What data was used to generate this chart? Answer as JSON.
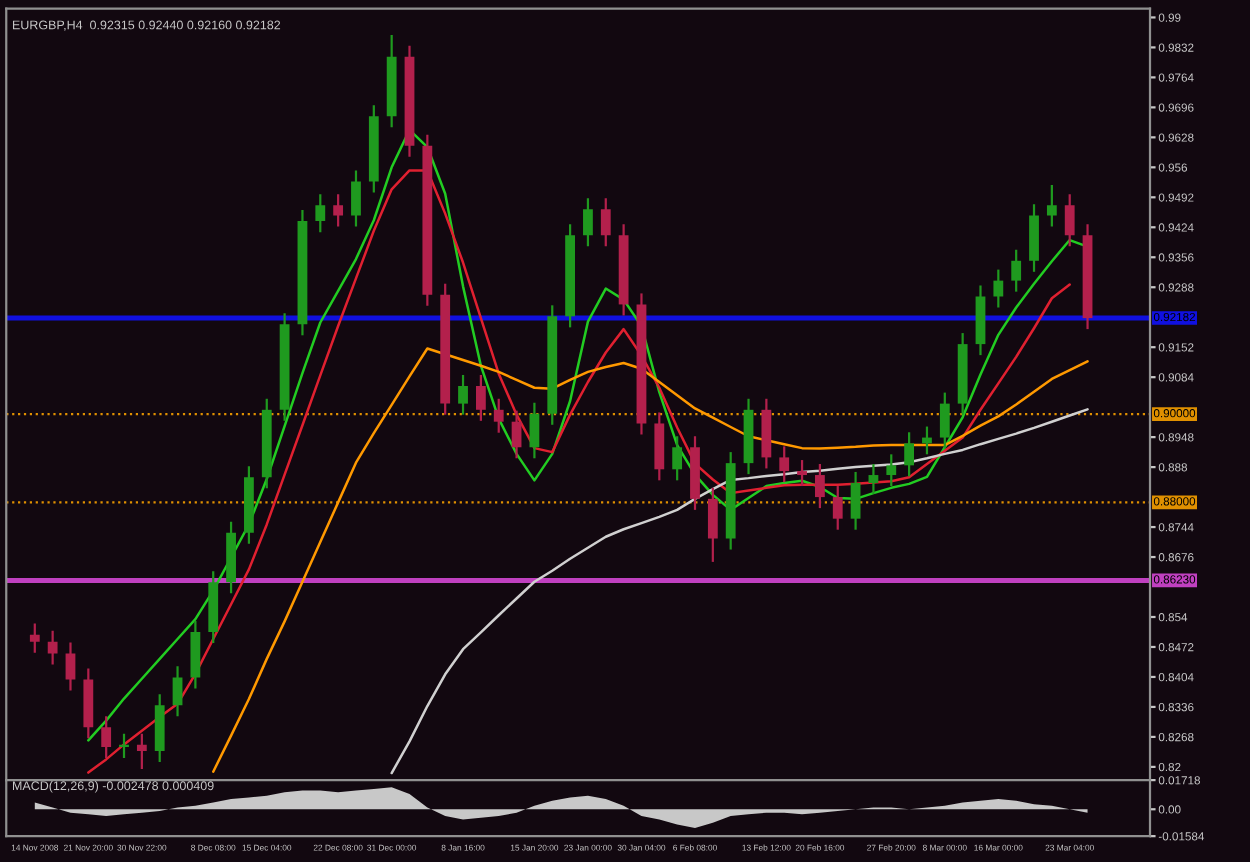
{
  "chart_data": [
    {
      "type": "candlestick",
      "title": "EURGBP,H4  0.92315 0.92440 0.92160 0.92182",
      "categories": [
        null,
        null,
        null,
        null,
        null,
        null,
        null,
        null,
        null,
        null,
        null,
        null,
        null,
        null,
        null,
        null,
        null,
        null,
        null,
        null,
        null,
        null,
        null,
        null,
        null,
        null,
        null,
        null,
        null,
        null,
        null,
        null,
        null,
        null,
        null,
        null,
        null,
        null,
        null,
        null,
        null,
        null,
        null,
        null,
        null,
        null,
        null,
        null,
        null,
        null,
        null,
        null,
        null,
        null,
        null,
        null,
        null,
        null,
        null,
        null
      ],
      "ohlc": [
        [
          0.85,
          0.8525,
          0.8459,
          0.8484
        ],
        [
          0.8484,
          0.8509,
          0.8432,
          0.8457
        ],
        [
          0.8457,
          0.8482,
          0.8373,
          0.8398
        ],
        [
          0.8398,
          0.8423,
          0.8265,
          0.829
        ],
        [
          0.829,
          0.8315,
          0.822,
          0.8245
        ],
        [
          0.8245,
          0.8275,
          0.822,
          0.825
        ],
        [
          0.825,
          0.8275,
          0.8195,
          0.8236
        ],
        [
          0.8236,
          0.8365,
          0.8211,
          0.834
        ],
        [
          0.834,
          0.8428,
          0.8315,
          0.8403
        ],
        [
          0.8403,
          0.8531,
          0.8378,
          0.8506
        ],
        [
          0.8506,
          0.8644,
          0.8481,
          0.8619
        ],
        [
          0.8619,
          0.8756,
          0.8594,
          0.8731
        ],
        [
          0.8731,
          0.8882,
          0.8706,
          0.8857
        ],
        [
          0.8857,
          0.9035,
          0.8832,
          0.901
        ],
        [
          0.901,
          0.9229,
          0.8985,
          0.9204
        ],
        [
          0.9204,
          0.9463,
          0.9179,
          0.9438
        ],
        [
          0.9438,
          0.9499,
          0.9413,
          0.9474
        ],
        [
          0.9474,
          0.9499,
          0.9426,
          0.9451
        ],
        [
          0.9451,
          0.9553,
          0.9426,
          0.9528
        ],
        [
          0.9528,
          0.9701,
          0.9503,
          0.9676
        ],
        [
          0.9676,
          0.986,
          0.9651,
          0.9811
        ],
        [
          0.9811,
          0.9836,
          0.9584,
          0.9609
        ],
        [
          0.9609,
          0.9634,
          0.9246,
          0.9271
        ],
        [
          0.9271,
          0.9296,
          0.8999,
          0.9024
        ],
        [
          0.9024,
          0.9089,
          0.8999,
          0.9064
        ],
        [
          0.9064,
          0.9089,
          0.8985,
          0.901
        ],
        [
          0.901,
          0.9035,
          0.8958,
          0.8983
        ],
        [
          0.8983,
          0.9008,
          0.89,
          0.8925
        ],
        [
          0.8925,
          0.9026,
          0.89,
          0.9001
        ],
        [
          0.9001,
          0.9247,
          0.8976,
          0.9222
        ],
        [
          0.9222,
          0.9431,
          0.9197,
          0.9406
        ],
        [
          0.9406,
          0.949,
          0.9381,
          0.9465
        ],
        [
          0.9465,
          0.949,
          0.9381,
          0.9406
        ],
        [
          0.9406,
          0.9431,
          0.9224,
          0.9249
        ],
        [
          0.9249,
          0.9274,
          0.8954,
          0.8979
        ],
        [
          0.8979,
          0.9004,
          0.885,
          0.8875
        ],
        [
          0.8875,
          0.895,
          0.885,
          0.8925
        ],
        [
          0.8925,
          0.895,
          0.8783,
          0.8808
        ],
        [
          0.8808,
          0.8833,
          0.8665,
          0.8718
        ],
        [
          0.8718,
          0.8914,
          0.8693,
          0.8889
        ],
        [
          0.8889,
          0.9035,
          0.8864,
          0.901
        ],
        [
          0.901,
          0.9035,
          0.8877,
          0.8902
        ],
        [
          0.8902,
          0.8927,
          0.8846,
          0.8871
        ],
        [
          0.8871,
          0.8896,
          0.8837,
          0.8862
        ],
        [
          0.8862,
          0.8887,
          0.8787,
          0.8812
        ],
        [
          0.8812,
          0.8837,
          0.8738,
          0.8763
        ],
        [
          0.8763,
          0.8869,
          0.8738,
          0.8844
        ],
        [
          0.8844,
          0.8887,
          0.8819,
          0.8862
        ],
        [
          0.8862,
          0.8909,
          0.8837,
          0.8884
        ],
        [
          0.8884,
          0.8959,
          0.8859,
          0.8934
        ],
        [
          0.8934,
          0.8972,
          0.8909,
          0.8947
        ],
        [
          0.8947,
          0.9049,
          0.8922,
          0.9024
        ],
        [
          0.9024,
          0.9184,
          0.8999,
          0.9159
        ],
        [
          0.9159,
          0.9292,
          0.9134,
          0.9267
        ],
        [
          0.9267,
          0.9328,
          0.9242,
          0.9303
        ],
        [
          0.9303,
          0.9373,
          0.9278,
          0.9348
        ],
        [
          0.9348,
          0.9476,
          0.9323,
          0.9451
        ],
        [
          0.9451,
          0.952,
          0.9426,
          0.9474
        ],
        [
          0.9474,
          0.9499,
          0.9381,
          0.9406
        ],
        [
          0.9406,
          0.9431,
          0.9193,
          0.9218
        ]
      ],
      "colors": [
        "#b3204c",
        "#b3204c",
        "#b3204c",
        "#b3204c",
        "#b3204c",
        "#1f9a1f",
        "#b3204c",
        "#1f9a1f",
        "#1f9a1f",
        "#1f9a1f",
        "#1f9a1f",
        "#1f9a1f",
        "#1f9a1f",
        "#1f9a1f",
        "#1f9a1f",
        "#1f9a1f",
        "#1f9a1f",
        "#b3204c",
        "#1f9a1f",
        "#1f9a1f",
        "#1f9a1f",
        "#b3204c",
        "#b3204c",
        "#b3204c",
        "#1f9a1f",
        "#b3204c",
        "#b3204c",
        "#b3204c",
        "#1f9a1f",
        "#1f9a1f",
        "#1f9a1f",
        "#1f9a1f",
        "#b3204c",
        "#b3204c",
        "#b3204c",
        "#b3204c",
        "#1f9a1f",
        "#b3204c",
        "#b3204c",
        "#1f9a1f",
        "#1f9a1f",
        "#b3204c",
        "#b3204c",
        "#b3204c",
        "#b3204c",
        "#b3204c",
        "#1f9a1f",
        "#1f9a1f",
        "#1f9a1f",
        "#1f9a1f",
        "#1f9a1f",
        "#1f9a1f",
        "#1f9a1f",
        "#1f9a1f",
        "#1f9a1f",
        "#1f9a1f",
        "#1f9a1f",
        "#1f9a1f",
        "#b3204c",
        "#b3204c"
      ],
      "series": [
        {
          "type": "line",
          "color": "#22cc22",
          "values": [
            null,
            null,
            null,
            0.826,
            0.8305,
            0.8355,
            0.84,
            0.8445,
            0.849,
            0.8535,
            0.86,
            0.8675,
            0.875,
            0.8853,
            0.8973,
            0.9093,
            0.9208,
            0.928,
            0.9352,
            0.944,
            0.956,
            0.9645,
            0.9606,
            0.95,
            0.929,
            0.911,
            0.899,
            0.891,
            0.885,
            0.891,
            0.903,
            0.921,
            0.9285,
            0.926,
            0.92,
            0.905,
            0.893,
            0.8863,
            0.8817,
            0.8783,
            0.881,
            0.8837,
            0.8844,
            0.8849,
            0.8835,
            0.881,
            0.8808,
            0.8821,
            0.8833,
            0.8842,
            0.8858,
            0.8925,
            0.8993,
            0.909,
            0.918,
            0.9242,
            0.9296,
            0.9347,
            0.9395,
            0.938
          ]
        },
        {
          "type": "line",
          "color": "#e02030",
          "values": [
            null,
            null,
            null,
            0.8187,
            0.8217,
            0.8251,
            0.8282,
            0.8313,
            0.8343,
            0.8411,
            0.849,
            0.8569,
            0.8648,
            0.875,
            0.8863,
            0.8975,
            0.9088,
            0.92,
            0.9308,
            0.9416,
            0.951,
            0.9553,
            0.9553,
            0.9455,
            0.9344,
            0.9218,
            0.9092,
            0.8999,
            0.8923,
            0.8914,
            0.8999,
            0.9073,
            0.914,
            0.9193,
            0.9133,
            0.906,
            0.897,
            0.8888,
            0.8852,
            0.8821,
            0.8827,
            0.8833,
            0.8839,
            0.884,
            0.884,
            0.884,
            0.8842,
            0.8845,
            0.8848,
            0.8857,
            0.8887,
            0.8917,
            0.8947,
            0.901,
            0.907,
            0.913,
            0.9195,
            0.9263,
            0.9294,
            null
          ]
        },
        {
          "type": "line",
          "color": "#ff9900",
          "values": [
            null,
            null,
            null,
            null,
            null,
            null,
            null,
            null,
            null,
            null,
            0.8189,
            0.8271,
            0.8354,
            0.8445,
            0.853,
            0.862,
            0.871,
            0.88,
            0.889,
            0.8957,
            0.9021,
            0.9086,
            0.9149,
            0.9136,
            0.9123,
            0.911,
            0.9096,
            0.9078,
            0.906,
            0.9058,
            0.9078,
            0.9096,
            0.9107,
            0.9116,
            0.9103,
            0.9073,
            0.9043,
            0.9013,
            0.8992,
            0.8971,
            0.895,
            0.8941,
            0.8932,
            0.8923,
            0.8922,
            0.8924,
            0.8926,
            0.8929,
            0.893,
            0.893,
            0.893,
            0.893,
            0.8951,
            0.8974,
            0.8995,
            0.9022,
            0.9051,
            0.908,
            0.91,
            0.912
          ]
        },
        {
          "type": "line",
          "color": "#d0d0d0",
          "values": [
            null,
            null,
            null,
            null,
            null,
            null,
            null,
            null,
            null,
            null,
            null,
            null,
            null,
            null,
            null,
            null,
            null,
            null,
            null,
            null,
            0.8186,
            0.8258,
            0.8338,
            0.841,
            0.8467,
            0.8505,
            0.8544,
            0.8582,
            0.862,
            0.8645,
            0.8672,
            0.8697,
            0.8722,
            0.8739,
            0.8753,
            0.8767,
            0.8783,
            0.8808,
            0.883,
            0.8851,
            0.8855,
            0.886,
            0.8864,
            0.8869,
            0.8872,
            0.8876,
            0.888,
            0.8883,
            0.8886,
            0.8891,
            0.89,
            0.891,
            0.8919,
            0.8932,
            0.8944,
            0.8956,
            0.8969,
            0.8983,
            0.8997,
            0.9011
          ]
        }
      ],
      "ref_lines": [
        {
          "axis": "y",
          "value": 0.92182,
          "label": "0.92182",
          "color": "#1010e0",
          "line_style": "solid"
        },
        {
          "axis": "y",
          "value": 0.9,
          "label": "0.90000",
          "color": "#e09000",
          "line_style": "dotted"
        },
        {
          "axis": "y",
          "value": 0.88,
          "label": "0.88000",
          "color": "#e09000",
          "line_style": "dotted"
        },
        {
          "axis": "y",
          "value": 0.8623,
          "label": "0.86230",
          "color": "#c040c0",
          "line_style": "solid"
        }
      ],
      "ylim": [
        0.817,
        0.992
      ],
      "yticks": [
        0.82,
        0.8268,
        0.8336,
        0.8404,
        0.8472,
        0.854,
        0.8676,
        0.8744,
        0.888,
        0.8948,
        0.9084,
        0.9152,
        0.9288,
        0.9356,
        0.9424,
        0.9492,
        0.956,
        0.9628,
        0.9696,
        0.9764,
        0.9832,
        0.99
      ],
      "tick_labels": "y",
      "grid": false,
      "legend": false
    },
    {
      "type": "area",
      "title": "MACD(12,26,9) -0.002478 0.000409",
      "categories": [
        "14 Nov 2008",
        null,
        null,
        "21 Nov 20:00",
        null,
        null,
        "30 Nov 22:00",
        null,
        null,
        null,
        "8 Dec 08:00",
        null,
        null,
        "15 Dec 04:00",
        null,
        null,
        null,
        "22 Dec 08:00",
        null,
        null,
        "31 Dec 00:00",
        null,
        null,
        null,
        "8 Jan 16:00",
        null,
        null,
        null,
        "15 Jan 20:00",
        null,
        null,
        "23 Jan 00:00",
        null,
        null,
        "30 Jan 04:00",
        null,
        null,
        "6 Feb 08:00",
        null,
        null,
        null,
        "13 Feb 12:00",
        null,
        null,
        "20 Feb 16:00",
        null,
        null,
        null,
        "27 Feb 20:00",
        null,
        null,
        "8 Mar 00:00",
        null,
        null,
        "16 Mar 00:00",
        null,
        null,
        null,
        "23 Mar 04:00",
        null
      ],
      "series": [
        {
          "color": "#c8c8c8",
          "values": [
            0.004,
            0.001,
            -0.002,
            -0.003,
            -0.004,
            -0.003,
            -0.002,
            -0.001,
            0.001,
            0.002,
            0.004,
            0.006,
            0.007,
            0.008,
            0.01,
            0.011,
            0.011,
            0.01,
            0.011,
            0.012,
            0.013,
            0.009,
            0.001,
            -0.004,
            -0.006,
            -0.005,
            -0.004,
            -0.002,
            0.002,
            0.005,
            0.007,
            0.008,
            0.006,
            0.002,
            -0.004,
            -0.006,
            -0.009,
            -0.011,
            -0.008,
            -0.004,
            -0.003,
            -0.002,
            -0.002,
            -0.003,
            -0.002,
            -0.001,
            0.0,
            0.001,
            0.001,
            0.0,
            0.001,
            0.002,
            0.004,
            0.005,
            0.006,
            0.005,
            0.003,
            0.002,
            0.0,
            -0.002
          ]
        }
      ],
      "ylim": [
        -0.01584,
        0.01718
      ],
      "yticks": [
        -0.01584,
        {
          "value": 0,
          "label": "0.00"
        },
        0.01718
      ],
      "grid": false,
      "legend": false
    }
  ]
}
